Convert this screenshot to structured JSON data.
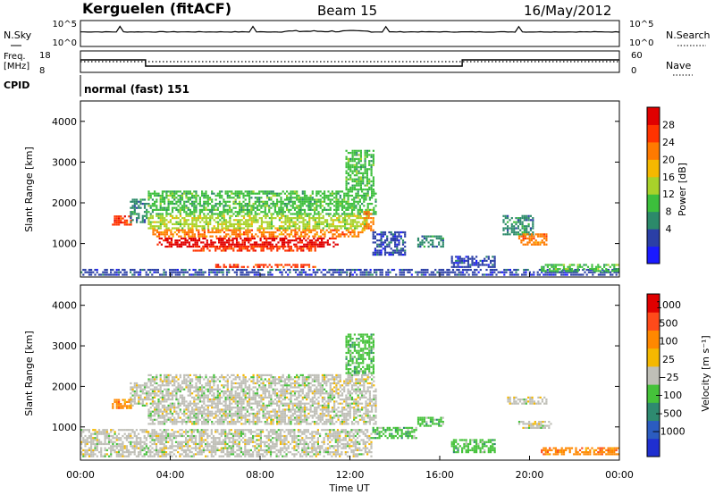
{
  "header": {
    "radar": "Kerguelen (fitACF)",
    "beam": "Beam 15",
    "date": "16/May/2012"
  },
  "nsky_panel": {
    "left_label": "N.Sky",
    "right_label": "N.Search",
    "left_ticks": [
      "10^5",
      "10^0"
    ],
    "right_ticks": [
      "10^5",
      "10^0"
    ]
  },
  "freq_panel": {
    "left_label_1": "Freq.",
    "left_label_2": "[MHz]",
    "right_label": "Nave",
    "left_ticks": [
      "18",
      "8"
    ],
    "right_ticks": [
      "60",
      "0"
    ]
  },
  "cpid": {
    "label": "CPID",
    "value": "normal (fast) 151"
  },
  "colors": {
    "power": [
      "#1a1aff",
      "#2b3fa6",
      "#2c8a6a",
      "#3cbf3c",
      "#a8d22a",
      "#f5b800",
      "#ff7a00",
      "#ff3300",
      "#e00000"
    ],
    "velocity": [
      "#1f2fd0",
      "#2b5cc0",
      "#2e8a70",
      "#45c23a",
      "#bfbfb7",
      "#f5b800",
      "#ff8800",
      "#ff4a1a",
      "#e00000"
    ],
    "grey": "#bebeb6"
  },
  "chart_data": [
    {
      "type": "heatmap",
      "name": "power",
      "ylabel": "Slant Range [km]",
      "colorbar_label": "Power [dB]",
      "colorbar_ticks": [
        "28",
        "24",
        "20",
        "16",
        "12",
        "8",
        "4"
      ],
      "y_ticks": [
        "4000",
        "3000",
        "2000",
        "1000"
      ],
      "ylim": [
        180,
        4500
      ],
      "regions": [
        {
          "t0": 1.4,
          "t1": 2.3,
          "r0": 1440,
          "r1": 1690,
          "c": 7
        },
        {
          "t0": 2.2,
          "t1": 3.0,
          "r0": 1500,
          "r1": 2100,
          "c": 2
        },
        {
          "t0": 3.0,
          "t1": 13.2,
          "r0": 1700,
          "r1": 2300,
          "c": 3
        },
        {
          "t0": 3.0,
          "t1": 12.8,
          "r0": 1350,
          "r1": 1700,
          "c": 4
        },
        {
          "t0": 3.2,
          "t1": 12.6,
          "r0": 1150,
          "r1": 1350,
          "c": 6
        },
        {
          "t0": 3.4,
          "t1": 11.5,
          "r0": 900,
          "r1": 1150,
          "c": 8
        },
        {
          "t0": 5.0,
          "t1": 10.5,
          "r0": 800,
          "r1": 950,
          "c": 7
        },
        {
          "t0": 6.0,
          "t1": 10.5,
          "r0": 400,
          "r1": 500,
          "c": 7
        },
        {
          "t0": 11.8,
          "t1": 13.1,
          "r0": 2300,
          "r1": 3300,
          "c": 3
        },
        {
          "t0": 12.6,
          "t1": 13.1,
          "r0": 1300,
          "r1": 1800,
          "c": 6
        },
        {
          "t0": 13.0,
          "t1": 14.5,
          "r0": 700,
          "r1": 1300,
          "c": 1
        },
        {
          "t0": 15.0,
          "t1": 16.2,
          "r0": 900,
          "r1": 1200,
          "c": 2
        },
        {
          "t0": 16.5,
          "t1": 18.5,
          "r0": 400,
          "r1": 700,
          "c": 1
        },
        {
          "t0": 18.8,
          "t1": 20.2,
          "r0": 1200,
          "r1": 1700,
          "c": 2
        },
        {
          "t0": 19.5,
          "t1": 20.8,
          "r0": 950,
          "r1": 1250,
          "c": 6
        },
        {
          "t0": 0.0,
          "t1": 24.0,
          "r0": 200,
          "r1": 380,
          "c": 1
        },
        {
          "t0": 20.5,
          "t1": 24.0,
          "r0": 300,
          "r1": 500,
          "c": 3
        }
      ]
    },
    {
      "type": "heatmap",
      "name": "velocity",
      "ylabel": "Slant Range [km]",
      "colorbar_label": "Velocity [m s⁻¹]",
      "colorbar_ticks": [
        "1000",
        "500",
        "100",
        "25",
        "−25",
        "−100",
        "−500",
        "−1000"
      ],
      "y_ticks": [
        "4000",
        "3000",
        "2000",
        "1000"
      ],
      "ylim": [
        180,
        4500
      ],
      "regions": [
        {
          "t0": 1.4,
          "t1": 2.3,
          "r0": 1440,
          "r1": 1690,
          "c": 6
        },
        {
          "t0": 3.0,
          "t1": 13.2,
          "r0": 1050,
          "r1": 2300,
          "c": 4
        },
        {
          "t0": 2.2,
          "t1": 3.0,
          "r0": 1500,
          "r1": 2100,
          "c": 4
        },
        {
          "t0": 11.8,
          "t1": 13.1,
          "r0": 2300,
          "r1": 3300,
          "c": 3
        },
        {
          "t0": 0.0,
          "t1": 13.0,
          "r0": 250,
          "r1": 950,
          "c": 4
        },
        {
          "t0": 13.0,
          "t1": 15.0,
          "r0": 700,
          "r1": 1000,
          "c": 3
        },
        {
          "t0": 15.0,
          "t1": 16.2,
          "r0": 1000,
          "r1": 1250,
          "c": 3
        },
        {
          "t0": 16.5,
          "t1": 18.5,
          "r0": 350,
          "r1": 700,
          "c": 3
        },
        {
          "t0": 19.0,
          "t1": 20.8,
          "r0": 1550,
          "r1": 1750,
          "c": 4
        },
        {
          "t0": 19.5,
          "t1": 21.0,
          "r0": 950,
          "r1": 1150,
          "c": 4
        },
        {
          "t0": 20.5,
          "t1": 24.0,
          "r0": 300,
          "r1": 500,
          "c": 6
        }
      ]
    }
  ],
  "time_axis": {
    "ticks": [
      "00:00",
      "04:00",
      "08:00",
      "12:00",
      "16:00",
      "20:00",
      "00:00"
    ],
    "xlabel": "Time UT",
    "xlim_hours": [
      0,
      24
    ]
  }
}
